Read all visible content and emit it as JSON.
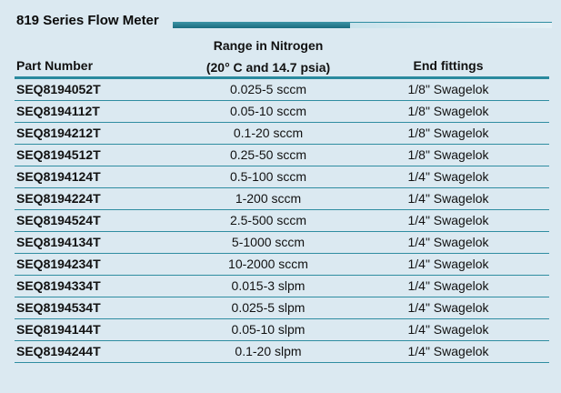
{
  "title": "819 Series Flow Meter",
  "headers": {
    "part_number": "Part Number",
    "range_line1": "Range in Nitrogen",
    "range_line2": "(20° C and 14.7 psia)",
    "end_fittings": "End fittings"
  },
  "rows": [
    {
      "part": "SEQ8194052T",
      "range": "0.025-5 sccm",
      "fitting": "1/8\" Swagelok"
    },
    {
      "part": "SEQ8194112T",
      "range": "0.05-10 sccm",
      "fitting": "1/8\" Swagelok"
    },
    {
      "part": "SEQ8194212T",
      "range": "0.1-20 sccm",
      "fitting": "1/8\" Swagelok"
    },
    {
      "part": "SEQ8194512T",
      "range": "0.25-50 sccm",
      "fitting": "1/8\" Swagelok"
    },
    {
      "part": "SEQ8194124T",
      "range": "0.5-100 sccm",
      "fitting": "1/4\" Swagelok"
    },
    {
      "part": "SEQ8194224T",
      "range": "1-200 sccm",
      "fitting": "1/4\" Swagelok"
    },
    {
      "part": "SEQ8194524T",
      "range": "2.5-500 sccm",
      "fitting": "1/4\" Swagelok"
    },
    {
      "part": "SEQ8194134T",
      "range": "5-1000 sccm",
      "fitting": "1/4\" Swagelok"
    },
    {
      "part": "SEQ8194234T",
      "range": "10-2000 sccm",
      "fitting": "1/4\" Swagelok"
    },
    {
      "part": "SEQ8194334T",
      "range": "0.015-3 slpm",
      "fitting": "1/4\" Swagelok"
    },
    {
      "part": "SEQ8194534T",
      "range": "0.025-5 slpm",
      "fitting": "1/4\" Swagelok"
    },
    {
      "part": "SEQ8194144T",
      "range": "0.05-10 slpm",
      "fitting": "1/4\" Swagelok"
    },
    {
      "part": "SEQ8194244T",
      "range": "0.1-20 slpm",
      "fitting": "1/4\" Swagelok"
    }
  ],
  "colors": {
    "background": "#dbe9f1",
    "accent": "#2a8a9e",
    "text": "#111111"
  }
}
